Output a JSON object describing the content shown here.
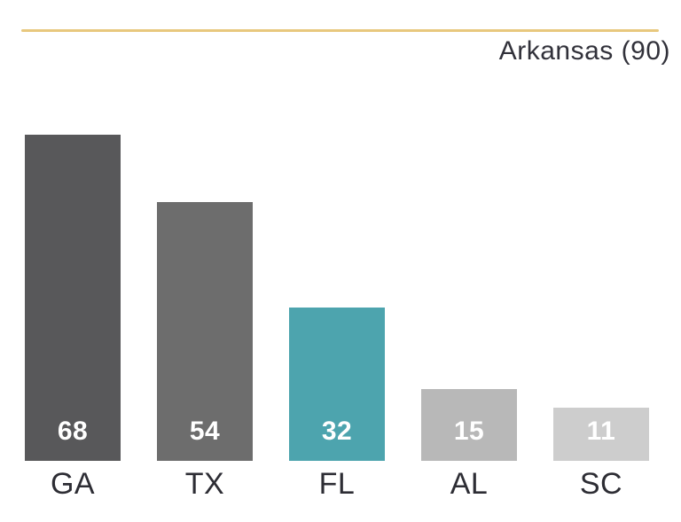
{
  "chart_data": {
    "type": "bar",
    "title": "Arkansas (90)",
    "categories": [
      "GA",
      "TX",
      "FL",
      "AL",
      "SC"
    ],
    "values": [
      68,
      54,
      32,
      15,
      11
    ],
    "bar_colors": [
      "#58585a",
      "#6d6d6d",
      "#4da4ae",
      "#b8b8b8",
      "#cdcdcd"
    ],
    "value_label_color": "#ffffff",
    "category_label_color": "#2d2d34",
    "title_color": "#31313a",
    "accent_line_color": "#e8c87e",
    "ylim": [
      0,
      68
    ],
    "xlabel": "",
    "ylabel": "",
    "grid": false,
    "legend": false,
    "axis_lines": false,
    "value_labels_position": "inside-bottom"
  }
}
